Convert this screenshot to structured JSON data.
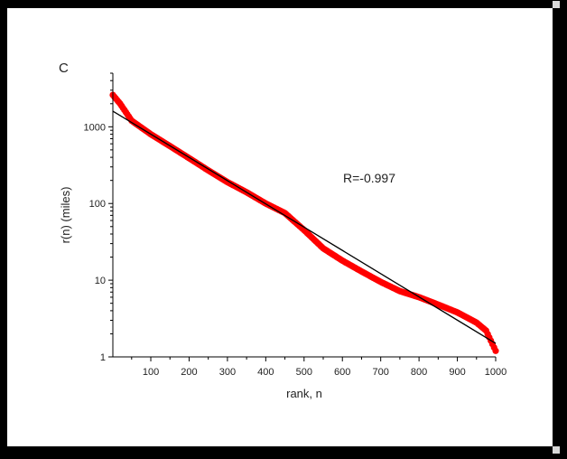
{
  "chart_data": {
    "type": "scatter",
    "panel_label": "C",
    "xlabel": "rank, n",
    "ylabel": "r(n) (miles)",
    "annotation": "R=-0.997",
    "x_scale": "linear",
    "y_scale": "log",
    "xlim": [
      1,
      1000
    ],
    "ylim": [
      1,
      5000
    ],
    "x_ticks": [
      100,
      200,
      300,
      400,
      500,
      600,
      700,
      800,
      900,
      1000
    ],
    "x_tick_labels": [
      "100",
      "200",
      "300",
      "400",
      "500",
      "600",
      "700",
      "800",
      "900",
      "1000"
    ],
    "y_ticks": [
      1,
      10,
      100,
      1000
    ],
    "y_tick_labels": [
      "1",
      "10",
      "100",
      "1000"
    ],
    "series": [
      {
        "kind": "points",
        "color": "#ff0000",
        "x": [
          1,
          20,
          50,
          100,
          150,
          200,
          250,
          300,
          350,
          400,
          450,
          500,
          550,
          600,
          650,
          700,
          750,
          800,
          850,
          900,
          950,
          975,
          1000
        ],
        "y": [
          2600,
          2000,
          1200,
          800,
          560,
          390,
          270,
          190,
          140,
          100,
          75,
          45,
          26,
          18,
          13,
          9.5,
          7.2,
          6.0,
          4.8,
          3.8,
          2.8,
          2.2,
          1.2
        ]
      },
      {
        "kind": "fit-line",
        "color": "#000000",
        "x": [
          1,
          1000
        ],
        "y": [
          1600,
          1.5
        ]
      }
    ]
  }
}
